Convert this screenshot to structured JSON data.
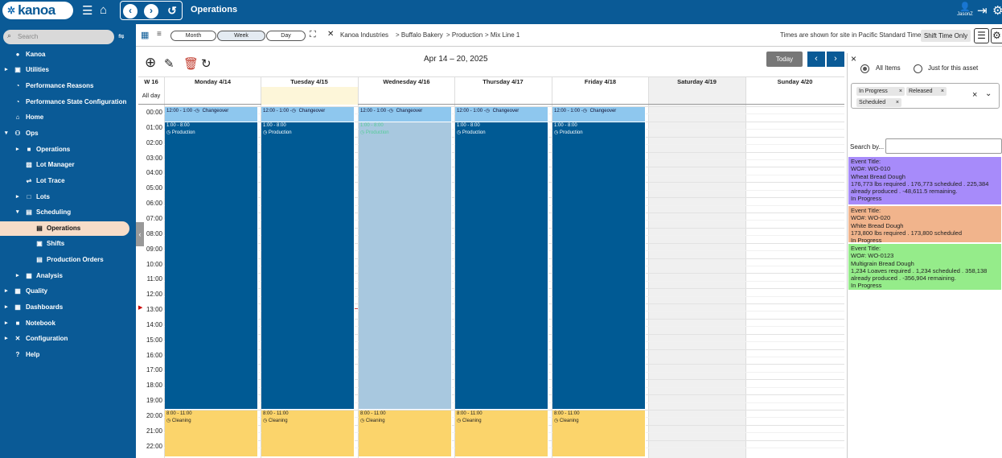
{
  "app": {
    "logo_text": "kanoa",
    "title": "Operations",
    "user": "JasonZ"
  },
  "sidebar": {
    "search_placeholder": "Search",
    "items": [
      {
        "label": "Kanoa"
      },
      {
        "label": "Utilities"
      },
      {
        "label": "Performance Reasons"
      },
      {
        "label": "Performance State Configuration"
      },
      {
        "label": "Home"
      },
      {
        "label": "Ops"
      },
      {
        "label": "Operations"
      },
      {
        "label": "Lot Manager"
      },
      {
        "label": "Lot Trace"
      },
      {
        "label": "Lots"
      },
      {
        "label": "Scheduling"
      },
      {
        "label": "Operations"
      },
      {
        "label": "Shifts"
      },
      {
        "label": "Production Orders"
      },
      {
        "label": "Analysis"
      },
      {
        "label": "Quality"
      },
      {
        "label": "Dashboards"
      },
      {
        "label": "Notebook"
      },
      {
        "label": "Configuration"
      },
      {
        "label": "Help"
      }
    ]
  },
  "toolbar": {
    "views": [
      "Month",
      "Week",
      "Day"
    ],
    "breadcrumb": [
      "Kanoa Industries",
      "> Buffalo Bakery",
      "> Production",
      "> Mix Line 1"
    ],
    "timezone_note": "Times are shown for site in Pacific Standard Time",
    "shift_toggle": "Shift Time Only"
  },
  "calendar": {
    "range": "Apr 14 – 20, 2025",
    "today_label": "Today",
    "week_label": "W 16",
    "all_day_label": "All day",
    "days": [
      "Monday 4/14",
      "Tuesday 4/15",
      "Wednesday 4/16",
      "Thursday 4/17",
      "Friday 4/18",
      "Saturday 4/19",
      "Sunday 4/20"
    ],
    "hours": [
      "00:00",
      "01:00",
      "02:00",
      "03:00",
      "04:00",
      "05:00",
      "06:00",
      "07:00",
      "08:00",
      "09:00",
      "10:00",
      "11:00",
      "12:00",
      "13:00",
      "14:00",
      "15:00",
      "16:00",
      "17:00",
      "18:00",
      "19:00",
      "20:00",
      "21:00",
      "22:00"
    ],
    "events": {
      "changeover": {
        "time": "12:00 - 1:00 -",
        "name": "Changeover"
      },
      "production": {
        "time": "1:00 - 8:00",
        "name": "Production"
      },
      "cleaning": {
        "time": "8:00 - 11:00",
        "name": "Cleaning"
      }
    }
  },
  "panel": {
    "radio_all": "All Items",
    "radio_asset": "Just for this asset",
    "chips": [
      "In Progress",
      "Released",
      "Scheduled"
    ],
    "search_label": "Search by...",
    "cards": [
      {
        "color": "#a78bfa",
        "lines": [
          "Event Title:",
          "WO#: WO-010",
          "Wheat Bread Dough",
          "176,773 lbs required . 176,773 scheduled . 225,384",
          "already produced . -48,611.5 remaining.",
          "In Progress"
        ]
      },
      {
        "color": "#f1b48c",
        "lines": [
          "Event Title:",
          "WO#: WO-020",
          "White Bread Dough",
          "173,800 lbs required . 173,800 scheduled",
          "In Progress"
        ]
      },
      {
        "color": "#95ec8a",
        "lines": [
          "Event Title:",
          "WO#: WO-0123",
          "Multigrain Bread Dough",
          "1,234 Loaves required . 1,234 scheduled . 358,138",
          "already produced . -356,904 remaining.",
          "In Progress"
        ]
      }
    ]
  }
}
